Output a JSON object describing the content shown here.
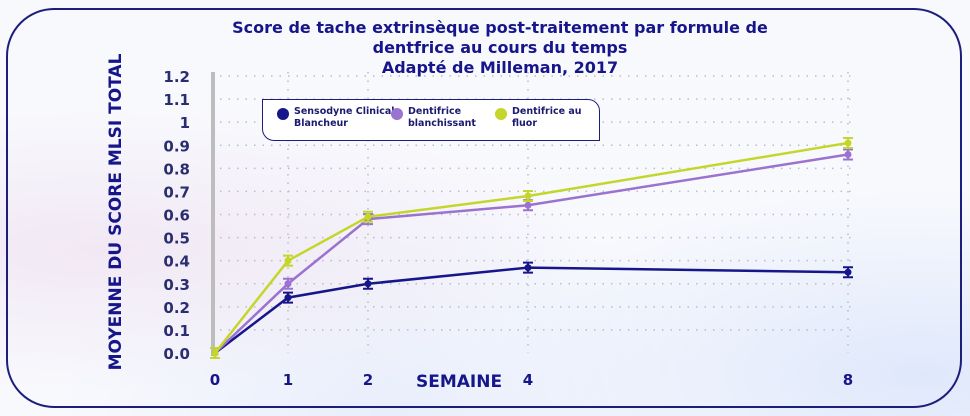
{
  "chart_data": {
    "type": "line",
    "title": "Score de tache extrinsèque post-traitement par formule de dentfrice au cours du temps",
    "subtitle": "Adapté de Milleman, 2017",
    "title_lines": [
      "Score de tache extrinsèque post-traitement par formule de",
      "dentfrice au cours du temps",
      "Adapté de Milleman, 2017"
    ],
    "xlabel": "SEMAINE",
    "ylabel": "MOYENNE DU SCORE MLSI TOTAL",
    "x": [
      0,
      1,
      2,
      4,
      8
    ],
    "x_tick_labels": [
      "0",
      "1",
      "2",
      "4",
      "8"
    ],
    "y_tick_labels": [
      "0.0",
      "0.1",
      "0.2",
      "0.3",
      "0.4",
      "0.5",
      "0.6",
      "0.7",
      "0.8",
      "0.9",
      "1",
      "1.1",
      "1.2"
    ],
    "ylim": [
      0,
      1.2
    ],
    "grid": "dotted",
    "legend_position": "top",
    "series": [
      {
        "name": "Sensodyne Clinical Blancheur",
        "name_lines": [
          "Sensodyne Clinical",
          "Blancheur"
        ],
        "color": "#16168a",
        "values": [
          0.0,
          0.24,
          0.3,
          0.37,
          0.35
        ]
      },
      {
        "name": "Dentifrice blanchissant",
        "name_lines": [
          "Dentifrice",
          "blanchissant"
        ],
        "color": "#9b72cf",
        "values": [
          0.0,
          0.3,
          0.58,
          0.64,
          0.86
        ]
      },
      {
        "name": "Dentifrice au fluor",
        "name_lines": [
          "Dentifrice au",
          "fluor"
        ],
        "color": "#c4d62a",
        "values": [
          0.0,
          0.4,
          0.59,
          0.68,
          0.91
        ]
      }
    ]
  }
}
